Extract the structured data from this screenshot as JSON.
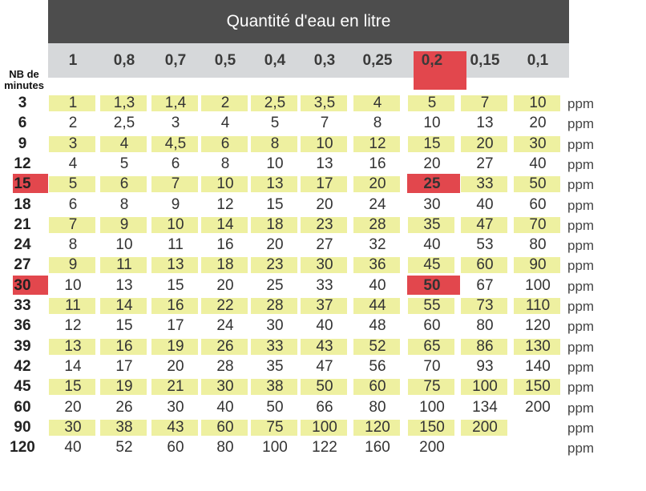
{
  "header": {
    "title": "Quantité d'eau en litre"
  },
  "columns": [
    "1",
    "0,8",
    "0,7",
    "0,5",
    "0,4",
    "0,3",
    "0,25",
    "0,2",
    "0,15",
    "0,1"
  ],
  "minutes_label_line1": "NB de",
  "minutes_label_line2": "minutes",
  "unit": "ppm",
  "highlight": {
    "column": "0,2",
    "rows": [
      "15",
      "30"
    ],
    "color": "#e2474d",
    "row_band_color": "#eef0a0"
  },
  "rows": [
    {
      "minutes": "3",
      "values": [
        "1",
        "1,3",
        "1,4",
        "2",
        "2,5",
        "3,5",
        "4",
        "5",
        "7",
        "10"
      ],
      "unit": "ppm"
    },
    {
      "minutes": "6",
      "values": [
        "2",
        "2,5",
        "3",
        "4",
        "5",
        "7",
        "8",
        "10",
        "13",
        "20"
      ],
      "unit": "ppm"
    },
    {
      "minutes": "9",
      "values": [
        "3",
        "4",
        "4,5",
        "6",
        "8",
        "10",
        "12",
        "15",
        "20",
        "30"
      ],
      "unit": "ppm"
    },
    {
      "minutes": "12",
      "values": [
        "4",
        "5",
        "6",
        "8",
        "10",
        "13",
        "16",
        "20",
        "27",
        "40"
      ],
      "unit": "ppm"
    },
    {
      "minutes": "15",
      "values": [
        "5",
        "6",
        "7",
        "10",
        "13",
        "17",
        "20",
        "25",
        "33",
        "50"
      ],
      "unit": "ppm"
    },
    {
      "minutes": "18",
      "values": [
        "6",
        "8",
        "9",
        "12",
        "15",
        "20",
        "24",
        "30",
        "40",
        "60"
      ],
      "unit": "ppm"
    },
    {
      "minutes": "21",
      "values": [
        "7",
        "9",
        "10",
        "14",
        "18",
        "23",
        "28",
        "35",
        "47",
        "70"
      ],
      "unit": "ppm"
    },
    {
      "minutes": "24",
      "values": [
        "8",
        "10",
        "11",
        "16",
        "20",
        "27",
        "32",
        "40",
        "53",
        "80"
      ],
      "unit": "ppm"
    },
    {
      "minutes": "27",
      "values": [
        "9",
        "11",
        "13",
        "18",
        "23",
        "30",
        "36",
        "45",
        "60",
        "90"
      ],
      "unit": "ppm"
    },
    {
      "minutes": "30",
      "values": [
        "10",
        "13",
        "15",
        "20",
        "25",
        "33",
        "40",
        "50",
        "67",
        "100"
      ],
      "unit": "ppm"
    },
    {
      "minutes": "33",
      "values": [
        "11",
        "14",
        "16",
        "22",
        "28",
        "37",
        "44",
        "55",
        "73",
        "110"
      ],
      "unit": "ppm"
    },
    {
      "minutes": "36",
      "values": [
        "12",
        "15",
        "17",
        "24",
        "30",
        "40",
        "48",
        "60",
        "80",
        "120"
      ],
      "unit": "ppm"
    },
    {
      "minutes": "39",
      "values": [
        "13",
        "16",
        "19",
        "26",
        "33",
        "43",
        "52",
        "65",
        "86",
        "130"
      ],
      "unit": "ppm"
    },
    {
      "minutes": "42",
      "values": [
        "14",
        "17",
        "20",
        "28",
        "35",
        "47",
        "56",
        "70",
        "93",
        "140"
      ],
      "unit": "ppm"
    },
    {
      "minutes": "45",
      "values": [
        "15",
        "19",
        "21",
        "30",
        "38",
        "50",
        "60",
        "75",
        "100",
        "150"
      ],
      "unit": "ppm"
    },
    {
      "minutes": "60",
      "values": [
        "20",
        "26",
        "30",
        "40",
        "50",
        "66",
        "80",
        "100",
        "134",
        "200"
      ],
      "unit": "ppm"
    },
    {
      "minutes": "90",
      "values": [
        "30",
        "38",
        "43",
        "60",
        "75",
        "100",
        "120",
        "150",
        "200",
        ""
      ],
      "unit": "ppm"
    },
    {
      "minutes": "120",
      "values": [
        "40",
        "52",
        "60",
        "80",
        "100",
        "122",
        "160",
        "200",
        "",
        ""
      ],
      "unit": "ppm"
    }
  ]
}
